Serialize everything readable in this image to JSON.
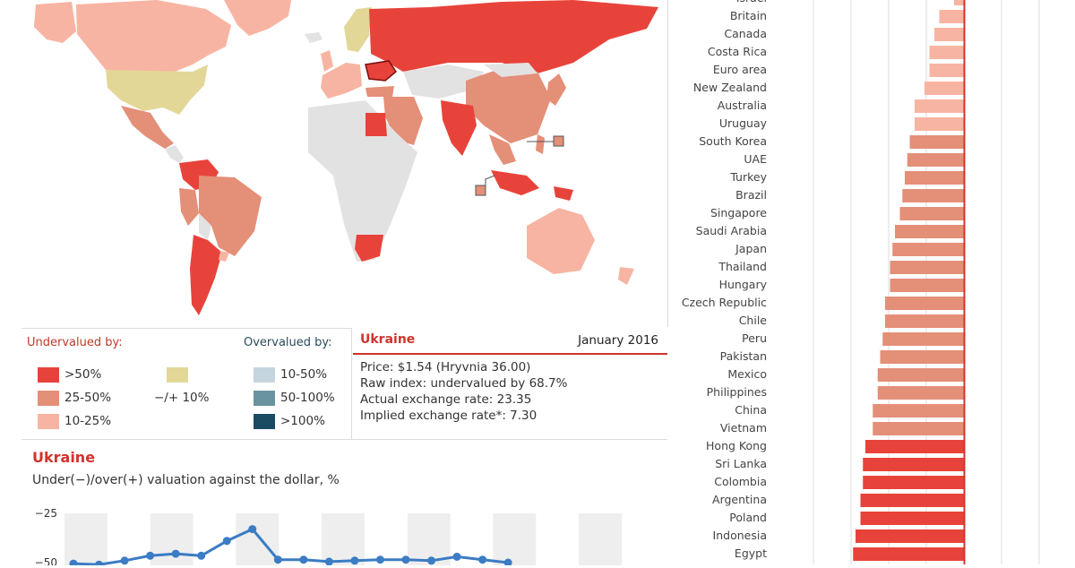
{
  "legend": {
    "under_title": "Undervalued by:",
    "over_title": "Overvalued by:",
    "items": [
      {
        "label": ">50%",
        "color": "#e8433a"
      },
      {
        "label": "25-50%",
        "color": "#e48f78"
      },
      {
        "label": "10-25%",
        "color": "#f8b4a2"
      },
      {
        "label": "−/+ 10%",
        "color": "#e2d797"
      },
      {
        "label": "10-50%",
        "color": "#c5d5df"
      },
      {
        "label": "50-100%",
        "color": "#69949f"
      },
      {
        "label": ">100%",
        "color": "#1a4b62"
      }
    ]
  },
  "detail": {
    "country": "Ukraine",
    "date": "January 2016",
    "price": "Price: $1.54 (Hryvnia 36.00)",
    "raw_index": "Raw index: undervalued by 68.7%",
    "actual_rate": "Actual exchange rate: 23.35",
    "implied_rate": "Implied exchange rate*: 7.30"
  },
  "colors": {
    "over50": "#e8433a",
    "r25_50": "#e48f78",
    "r10_25": "#f8b4a2",
    "pm10": "#e2d797",
    "nodata": "#e2e2e2",
    "accent": "#d0342c",
    "line": "#3b7cc4"
  },
  "chart_data": [
    {
      "type": "line",
      "title": "Ukraine",
      "subtitle": "Under(−)/over(+) valuation against the dollar, %",
      "y_ticks": [
        -25,
        -50
      ],
      "series": [
        {
          "values": [
            -50.5,
            -51,
            -49,
            -46.5,
            -45.5,
            -46.5,
            -39,
            -33,
            -48.5,
            -48.5,
            -49.5,
            -49,
            -48.5,
            -48.5,
            -49,
            -47,
            -48.5,
            -50
          ]
        }
      ]
    },
    {
      "type": "bar",
      "orientation": "horizontal",
      "categories": [
        "Israel",
        "Britain",
        "Canada",
        "Costa Rica",
        "Euro area",
        "New Zealand",
        "Australia",
        "Uruguay",
        "South Korea",
        "UAE",
        "Turkey",
        "Brazil",
        "Singapore",
        "Saudi Arabia",
        "Japan",
        "Thailand",
        "Hungary",
        "Czech Republic",
        "Chile",
        "Peru",
        "Pakistan",
        "Mexico",
        "Philippines",
        "China",
        "Vietnam",
        "Hong Kong",
        "Sri Lanka",
        "Colombia",
        "Argentina",
        "Poland",
        "Indonesia",
        "Egypt"
      ],
      "values": [
        -2,
        -5,
        -6,
        -7,
        -7,
        -8,
        -10,
        -10,
        -11,
        -11.5,
        -12,
        -12.5,
        -13,
        -14,
        -14.5,
        -15,
        -15,
        -16,
        -16,
        -16.5,
        -17,
        -17.5,
        -17.5,
        -18.5,
        -18.5,
        -20,
        -20.5,
        -20.5,
        -21,
        -21,
        -22,
        -22.5
      ]
    }
  ]
}
